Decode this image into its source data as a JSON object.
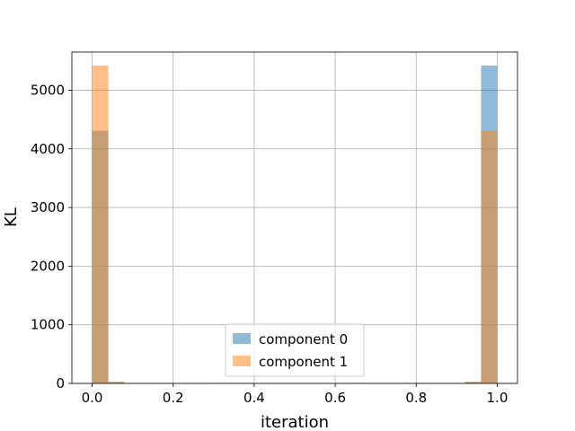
{
  "chart_data": {
    "type": "bar",
    "title": "",
    "xlabel": "iteration",
    "ylabel": "KL",
    "xlim": [
      -0.05,
      1.05
    ],
    "ylim": [
      0,
      5650
    ],
    "grid": true,
    "legend_position": "lower center",
    "bin_width": 0.04,
    "xticks": [
      0.0,
      0.2,
      0.4,
      0.6,
      0.8,
      1.0
    ],
    "xtick_labels": [
      "0.0",
      "0.2",
      "0.4",
      "0.6",
      "0.8",
      "1.0"
    ],
    "yticks": [
      0,
      1000,
      2000,
      3000,
      4000,
      5000
    ],
    "ytick_labels": [
      "0",
      "1000",
      "2000",
      "3000",
      "4000",
      "5000"
    ],
    "series": [
      {
        "name": "component 0",
        "color": "#1f77b4",
        "alpha": 0.5,
        "bins": [
          {
            "x0": 0.0,
            "value": 4310
          },
          {
            "x0": 0.04,
            "value": 25
          },
          {
            "x0": 0.08,
            "value": 5
          },
          {
            "x0": 0.12,
            "value": 5
          },
          {
            "x0": 0.16,
            "value": 5
          },
          {
            "x0": 0.28,
            "value": 5
          },
          {
            "x0": 0.32,
            "value": 5
          },
          {
            "x0": 0.36,
            "value": 5
          },
          {
            "x0": 0.64,
            "value": 5
          },
          {
            "x0": 0.76,
            "value": 5
          },
          {
            "x0": 0.8,
            "value": 5
          },
          {
            "x0": 0.84,
            "value": 5
          },
          {
            "x0": 0.88,
            "value": 5
          },
          {
            "x0": 0.92,
            "value": 25
          },
          {
            "x0": 0.96,
            "value": 5420
          }
        ]
      },
      {
        "name": "component 1",
        "color": "#ff7f0e",
        "alpha": 0.5,
        "bins": [
          {
            "x0": 0.0,
            "value": 5420
          },
          {
            "x0": 0.04,
            "value": 25
          },
          {
            "x0": 0.08,
            "value": 5
          },
          {
            "x0": 0.12,
            "value": 5
          },
          {
            "x0": 0.16,
            "value": 5
          },
          {
            "x0": 0.2,
            "value": 5
          },
          {
            "x0": 0.6,
            "value": 5
          },
          {
            "x0": 0.64,
            "value": 5
          },
          {
            "x0": 0.8,
            "value": 5
          },
          {
            "x0": 0.84,
            "value": 5
          },
          {
            "x0": 0.88,
            "value": 5
          },
          {
            "x0": 0.92,
            "value": 25
          },
          {
            "x0": 0.96,
            "value": 4310
          }
        ]
      }
    ]
  }
}
